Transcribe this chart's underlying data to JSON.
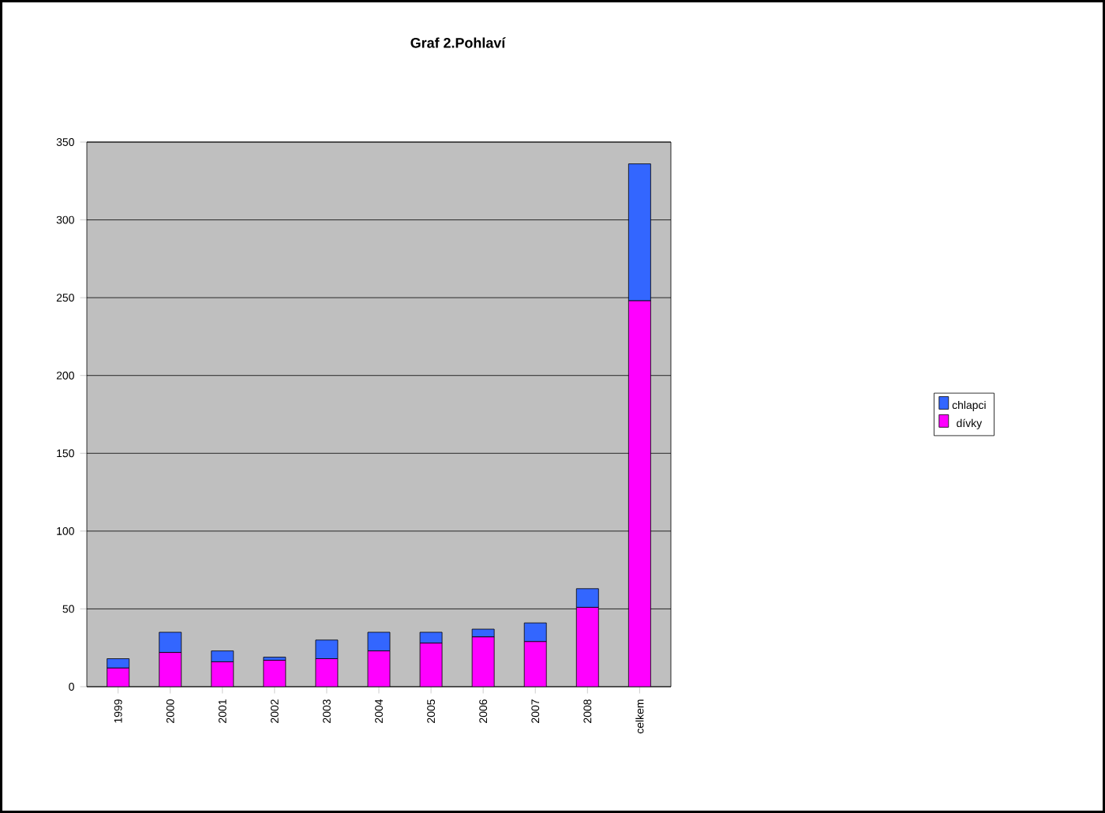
{
  "chart_data": {
    "type": "bar",
    "title": "Graf 2.Pohlaví",
    "stacked": true,
    "categories": [
      "1999",
      "2000",
      "2001",
      "2002",
      "2003",
      "2004",
      "2005",
      "2006",
      "2007",
      "2008",
      "celkem"
    ],
    "series": [
      {
        "name": "dívky",
        "color": "#ff00ff",
        "values": [
          12,
          22,
          16,
          17,
          18,
          23,
          28,
          32,
          29,
          51,
          248
        ]
      },
      {
        "name": "chlapci",
        "color": "#3366ff",
        "values": [
          6,
          13,
          7,
          2,
          12,
          12,
          7,
          5,
          12,
          12,
          88
        ]
      }
    ],
    "ylim": [
      0,
      350
    ],
    "yticks": [
      0,
      50,
      100,
      150,
      200,
      250,
      300,
      350
    ],
    "grid": "y",
    "legend": "right"
  }
}
